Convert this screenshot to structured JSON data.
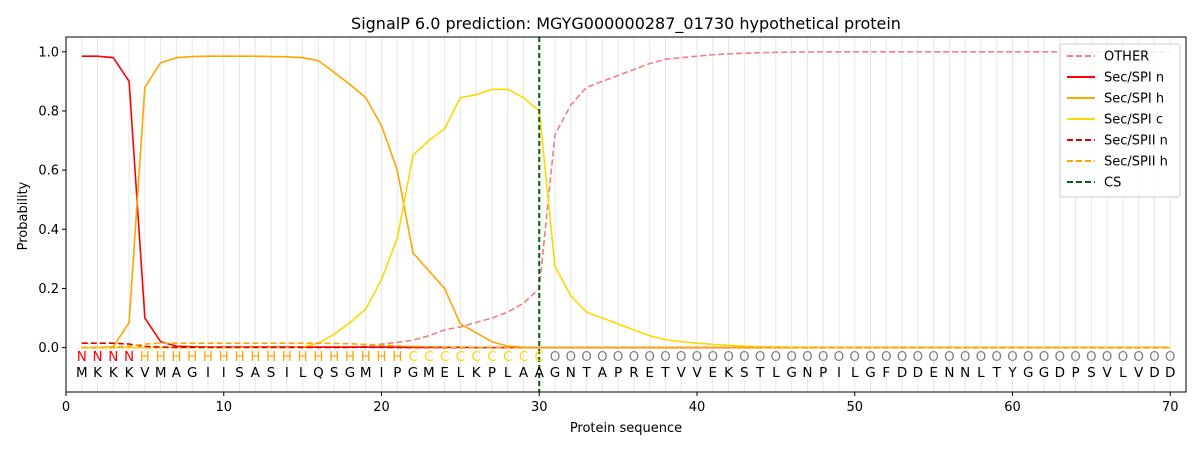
{
  "chart_data": {
    "type": "line",
    "title": "SignalP 6.0 prediction: MGYG000000287_01730 hypothetical protein",
    "xlabel": "Protein sequence",
    "ylabel": "Probability",
    "xlim": [
      0,
      71
    ],
    "ylim": [
      -0.15,
      1.05
    ],
    "x_ticks": [
      0,
      10,
      20,
      30,
      40,
      50,
      60,
      70
    ],
    "y_ticks": [
      0.0,
      0.2,
      0.4,
      0.6,
      0.8,
      1.0
    ],
    "x_tick_labels": [
      "0",
      "10",
      "20",
      "30",
      "40",
      "50",
      "60",
      "70"
    ],
    "y_tick_labels": [
      "0.0",
      "0.2",
      "0.4",
      "0.6",
      "0.8",
      "1.0"
    ],
    "grid": "vertical lines at every residue",
    "legend_position": "top-right",
    "cleavage_site": 30,
    "sequence": [
      "M",
      "K",
      "K",
      "K",
      "V",
      "M",
      "A",
      "G",
      "I",
      "I",
      "S",
      "A",
      "S",
      "I",
      "L",
      "Q",
      "S",
      "G",
      "M",
      "I",
      "P",
      "G",
      "M",
      "E",
      "L",
      "K",
      "P",
      "L",
      "A",
      "A",
      "G",
      "N",
      "T",
      "A",
      "P",
      "R",
      "E",
      "T",
      "V",
      "V",
      "E",
      "K",
      "S",
      "T",
      "L",
      "G",
      "N",
      "P",
      "I",
      "L",
      "G",
      "F",
      "D",
      "D",
      "E",
      "N",
      "N",
      "L",
      "T",
      "Y",
      "G",
      "G",
      "D",
      "P",
      "S",
      "V",
      "L",
      "V",
      "D",
      "D"
    ],
    "labels": [
      "N",
      "N",
      "N",
      "N",
      "H",
      "H",
      "H",
      "H",
      "H",
      "H",
      "H",
      "H",
      "H",
      "H",
      "H",
      "H",
      "H",
      "H",
      "H",
      "H",
      "H",
      "C",
      "C",
      "C",
      "C",
      "C",
      "C",
      "C",
      "C",
      "C",
      "O",
      "O",
      "O",
      "O",
      "O",
      "O",
      "O",
      "O",
      "O",
      "O",
      "O",
      "O",
      "O",
      "O",
      "O",
      "O",
      "O",
      "O",
      "O",
      "O",
      "O",
      "O",
      "O",
      "O",
      "O",
      "O",
      "O",
      "O",
      "O",
      "O",
      "O",
      "O",
      "O",
      "O",
      "O",
      "O",
      "O",
      "O",
      "O",
      "O"
    ],
    "label_colors": {
      "N": "#ff0000",
      "H": "#ffa500",
      "C": "#ffd700",
      "O": "#808080"
    },
    "series": [
      {
        "name": "OTHER",
        "color": "#f08080",
        "dash": "dashed",
        "values": [
          0.0,
          0.0,
          0.0,
          0.0,
          0.0,
          0.0,
          0.0,
          0.0,
          0.0,
          0.0,
          0.0,
          0.0,
          0.0,
          0.0,
          0.0,
          0.0,
          0.0,
          0.0,
          0.005,
          0.012,
          0.018,
          0.025,
          0.04,
          0.06,
          0.07,
          0.085,
          0.1,
          0.12,
          0.15,
          0.2,
          0.72,
          0.82,
          0.88,
          0.9,
          0.92,
          0.94,
          0.96,
          0.975,
          0.98,
          0.985,
          0.99,
          0.993,
          0.995,
          0.997,
          0.998,
          0.999,
          0.999,
          1.0,
          1.0,
          1.0,
          1.0,
          1.0,
          1.0,
          1.0,
          1.0,
          1.0,
          1.0,
          1.0,
          1.0,
          1.0,
          1.0,
          1.0,
          1.0,
          1.0,
          1.0,
          1.0,
          1.0,
          1.0,
          1.0,
          1.0
        ]
      },
      {
        "name": "Sec/SPI n",
        "color": "#ff0000",
        "dash": "solid",
        "values": [
          0.985,
          0.985,
          0.98,
          0.9,
          0.1,
          0.02,
          0.005,
          0.003,
          0.002,
          0.002,
          0.002,
          0.002,
          0.002,
          0.002,
          0.002,
          0.002,
          0.002,
          0.002,
          0.002,
          0.002,
          0.002,
          0.001,
          0.001,
          0.001,
          0.001,
          0.0,
          0.0,
          0.0,
          0.0,
          0.0,
          0.0,
          0.0,
          0.0,
          0.0,
          0.0,
          0.0,
          0.0,
          0.0,
          0.0,
          0.0,
          0.0,
          0.0,
          0.0,
          0.0,
          0.0,
          0.0,
          0.0,
          0.0,
          0.0,
          0.0,
          0.0,
          0.0,
          0.0,
          0.0,
          0.0,
          0.0,
          0.0,
          0.0,
          0.0,
          0.0,
          0.0,
          0.0,
          0.0,
          0.0,
          0.0,
          0.0,
          0.0,
          0.0,
          0.0,
          0.0
        ]
      },
      {
        "name": "Sec/SPI h",
        "color": "#ffa500",
        "dash": "solid",
        "values": [
          0.0,
          0.0,
          0.003,
          0.085,
          0.88,
          0.963,
          0.98,
          0.984,
          0.985,
          0.985,
          0.985,
          0.985,
          0.984,
          0.983,
          0.98,
          0.97,
          0.93,
          0.89,
          0.845,
          0.75,
          0.6,
          0.32,
          0.26,
          0.2,
          0.08,
          0.05,
          0.02,
          0.005,
          0.001,
          0.0,
          0.0,
          0.0,
          0.0,
          0.0,
          0.0,
          0.0,
          0.0,
          0.0,
          0.0,
          0.0,
          0.0,
          0.0,
          0.0,
          0.0,
          0.0,
          0.0,
          0.0,
          0.0,
          0.0,
          0.0,
          0.0,
          0.0,
          0.0,
          0.0,
          0.0,
          0.0,
          0.0,
          0.0,
          0.0,
          0.0,
          0.0,
          0.0,
          0.0,
          0.0,
          0.0,
          0.0,
          0.0,
          0.0,
          0.0,
          0.0
        ]
      },
      {
        "name": "Sec/SPI c",
        "color": "#ffd700",
        "dash": "solid",
        "values": [
          0.0,
          0.0,
          0.0,
          0.0,
          0.0,
          0.0,
          0.0,
          0.0,
          0.0,
          0.0,
          0.0,
          0.0,
          0.0,
          0.0,
          0.002,
          0.015,
          0.045,
          0.085,
          0.13,
          0.23,
          0.37,
          0.65,
          0.7,
          0.74,
          0.845,
          0.855,
          0.873,
          0.873,
          0.845,
          0.8,
          0.275,
          0.175,
          0.12,
          0.1,
          0.08,
          0.06,
          0.04,
          0.027,
          0.02,
          0.015,
          0.011,
          0.008,
          0.005,
          0.003,
          0.002,
          0.001,
          0.001,
          0.0,
          0.0,
          0.0,
          0.0,
          0.0,
          0.0,
          0.0,
          0.0,
          0.0,
          0.0,
          0.0,
          0.0,
          0.0,
          0.0,
          0.0,
          0.0,
          0.0,
          0.0,
          0.0,
          0.0,
          0.0,
          0.0,
          0.0
        ]
      },
      {
        "name": "Sec/SPII n",
        "color": "#dd0000",
        "dash": "dashed",
        "values": [
          0.015,
          0.015,
          0.015,
          0.012,
          0.004,
          0.002,
          0.001,
          0.001,
          0.001,
          0.001,
          0.001,
          0.001,
          0.001,
          0.001,
          0.001,
          0.001,
          0.001,
          0.001,
          0.001,
          0.001,
          0.0,
          0.0,
          0.0,
          0.0,
          0.0,
          0.0,
          0.0,
          0.0,
          0.0,
          0.0,
          0.0,
          0.0,
          0.0,
          0.0,
          0.0,
          0.0,
          0.0,
          0.0,
          0.0,
          0.0,
          0.0,
          0.0,
          0.0,
          0.0,
          0.0,
          0.0,
          0.0,
          0.0,
          0.0,
          0.0,
          0.0,
          0.0,
          0.0,
          0.0,
          0.0,
          0.0,
          0.0,
          0.0,
          0.0,
          0.0,
          0.0,
          0.0,
          0.0,
          0.0,
          0.0,
          0.0,
          0.0,
          0.0,
          0.0,
          0.0
        ]
      },
      {
        "name": "Sec/SPII h",
        "color": "#ffa500",
        "dash": "dashed",
        "values": [
          0.0,
          0.0,
          0.0,
          0.005,
          0.012,
          0.015,
          0.015,
          0.015,
          0.015,
          0.015,
          0.015,
          0.015,
          0.015,
          0.015,
          0.015,
          0.015,
          0.014,
          0.013,
          0.011,
          0.008,
          0.006,
          0.004,
          0.003,
          0.002,
          0.001,
          0.0,
          0.0,
          0.0,
          0.0,
          0.0,
          0.0,
          0.0,
          0.0,
          0.0,
          0.0,
          0.0,
          0.0,
          0.0,
          0.0,
          0.0,
          0.0,
          0.0,
          0.0,
          0.0,
          0.0,
          0.0,
          0.0,
          0.0,
          0.0,
          0.0,
          0.0,
          0.0,
          0.0,
          0.0,
          0.0,
          0.0,
          0.0,
          0.0,
          0.0,
          0.0,
          0.0,
          0.0,
          0.0,
          0.0,
          0.0,
          0.0,
          0.0,
          0.0,
          0.0,
          0.0
        ]
      }
    ],
    "cs_legend": {
      "name": "CS",
      "color": "#006400",
      "dash": "dashed"
    }
  }
}
